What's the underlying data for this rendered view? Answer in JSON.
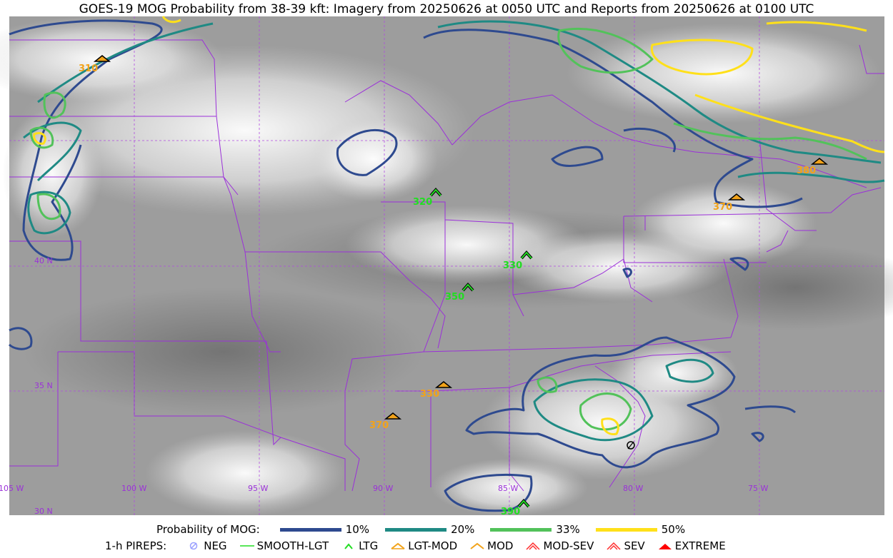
{
  "title": "GOES-19 MOG Probability from 38-39 kft: Imagery from 20250626 at 0050 UTC and Reports from 20250626 at 0100 UTC",
  "map": {
    "lat_labels": [
      "40 N",
      "35 N",
      "30 N"
    ],
    "lon_labels": [
      "105 W",
      "100 W",
      "95 W",
      "90 W",
      "85 W",
      "80 W",
      "75 W"
    ],
    "colors": {
      "grid": "#b04ae0",
      "borders": "#9b30d9",
      "p10": "#2e4a8f",
      "p20": "#1f8a84",
      "p33": "#52c25a",
      "p50": "#ffe01a",
      "pirep_mod": "#f2a31a",
      "pirep_ltg": "#22dd22"
    },
    "pireps": [
      {
        "alt": "310",
        "type": "LGT-MOD"
      },
      {
        "alt": "320",
        "type": "LTG"
      },
      {
        "alt": "330",
        "type": "LTG"
      },
      {
        "alt": "350",
        "type": "LTG"
      },
      {
        "alt": "330",
        "type": "LGT-MOD"
      },
      {
        "alt": "370",
        "type": "LGT-MOD"
      },
      {
        "alt": "370",
        "type": "LGT-MOD"
      },
      {
        "alt": "380",
        "type": "LGT-MOD"
      },
      {
        "alt": "390",
        "type": "LTG"
      },
      {
        "alt": "",
        "type": "NEG"
      }
    ]
  },
  "legend": {
    "probability": {
      "heading": "Probability of MOG:",
      "items": [
        {
          "label": "10%",
          "color": "#2e4a8f"
        },
        {
          "label": "20%",
          "color": "#1f8a84"
        },
        {
          "label": "33%",
          "color": "#52c25a"
        },
        {
          "label": "50%",
          "color": "#ffe01a"
        }
      ]
    },
    "pireps": {
      "heading": "1-h PIREPS:",
      "items": [
        {
          "label": "NEG",
          "icon": "neg-icon",
          "color": "#9aa0ff"
        },
        {
          "label": "SMOOTH-LGT",
          "icon": "smooth-lgt-icon",
          "color": "#22dd22"
        },
        {
          "label": "LTG",
          "icon": "ltg-icon",
          "color": "#22dd22"
        },
        {
          "label": "LGT-MOD",
          "icon": "lgt-mod-icon",
          "color": "#f2a31a"
        },
        {
          "label": "MOD",
          "icon": "mod-icon",
          "color": "#f2a31a"
        },
        {
          "label": "MOD-SEV",
          "icon": "mod-sev-icon",
          "color": "#ff3030"
        },
        {
          "label": "SEV",
          "icon": "sev-icon",
          "color": "#ff3030"
        },
        {
          "label": "EXTREME",
          "icon": "extreme-icon",
          "color": "#ff0000"
        }
      ]
    }
  }
}
